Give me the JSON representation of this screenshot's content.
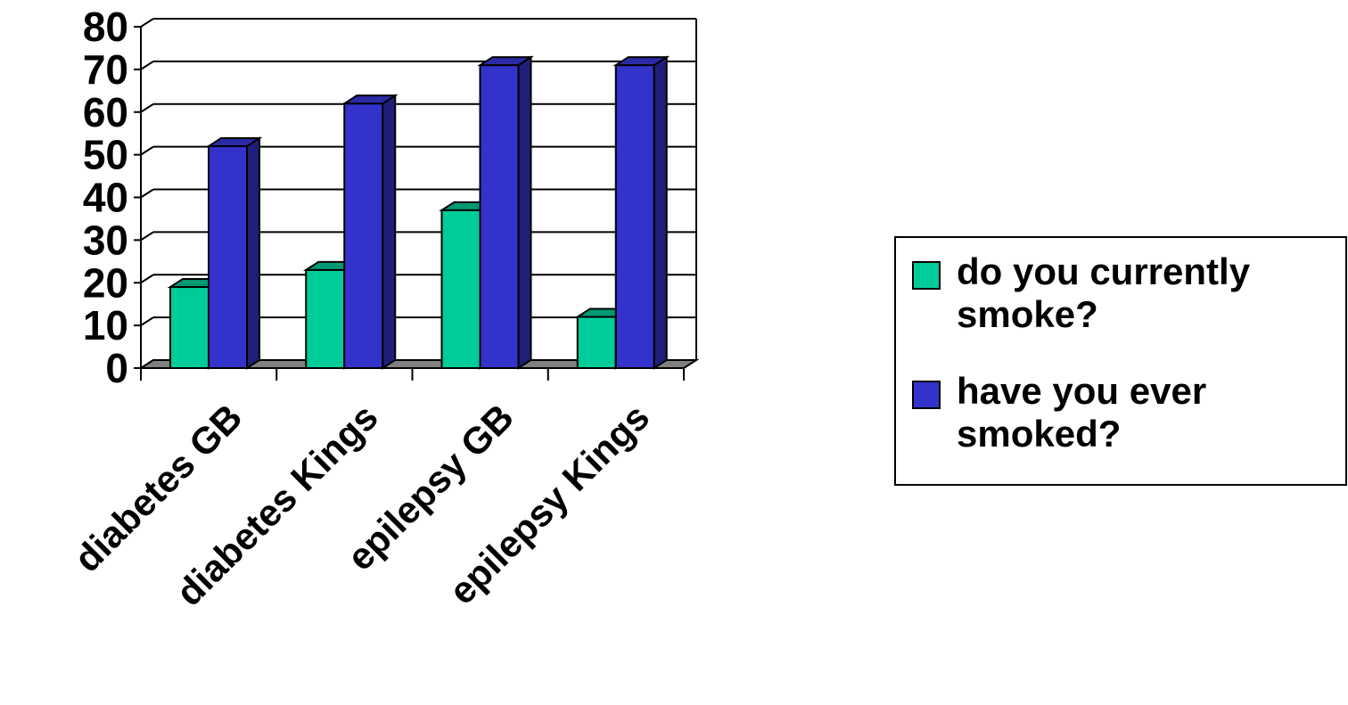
{
  "chart_data": {
    "type": "bar",
    "categories": [
      "diabetes GB",
      "diabetes Kings",
      "epilepsy GB",
      "epilepsy Kings"
    ],
    "series": [
      {
        "name": "do you currently smoke?",
        "values": [
          19,
          23,
          37,
          12
        ],
        "color": "#00CC99",
        "top_color": "#009973",
        "side_color": "#007A5C"
      },
      {
        "name": "have you ever smoked?",
        "values": [
          52,
          62,
          71,
          71
        ],
        "color": "#3333CC",
        "top_color": "#2A2AA6",
        "side_color": "#1F1F7A"
      }
    ],
    "title": "",
    "xlabel": "",
    "ylabel": "",
    "ylim": [
      0,
      80
    ],
    "yticks": [
      "0",
      "10",
      "20",
      "30",
      "40",
      "50",
      "60",
      "70",
      "80"
    ],
    "grid": true,
    "legend_position": "right",
    "floor_color": "#808080"
  },
  "legend": {
    "items": [
      {
        "label": "do you currently smoke?",
        "color": "#00CC99"
      },
      {
        "label": "have you ever smoked?",
        "color": "#3333CC"
      }
    ]
  }
}
